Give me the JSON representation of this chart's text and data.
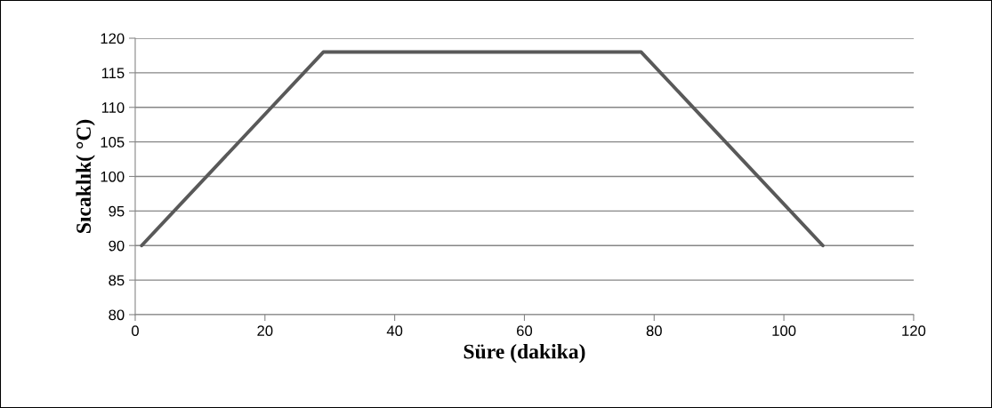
{
  "chart_data": {
    "type": "line",
    "xlabel": "Süre (dakika)",
    "ylabel": "Sıcaklık( °C)",
    "x": [
      1,
      29,
      78,
      106
    ],
    "series": [
      {
        "color": "#595959",
        "values": [
          90,
          118,
          118,
          90
        ]
      }
    ],
    "xlim": [
      0,
      120
    ],
    "xticks": [
      0,
      20,
      40,
      60,
      80,
      100,
      120
    ],
    "ylim": [
      80,
      120
    ],
    "yticks": [
      80,
      85,
      90,
      95,
      100,
      105,
      110,
      115,
      120
    ],
    "grid": "y",
    "legend": false,
    "marker": "none",
    "line_style": "solid"
  }
}
